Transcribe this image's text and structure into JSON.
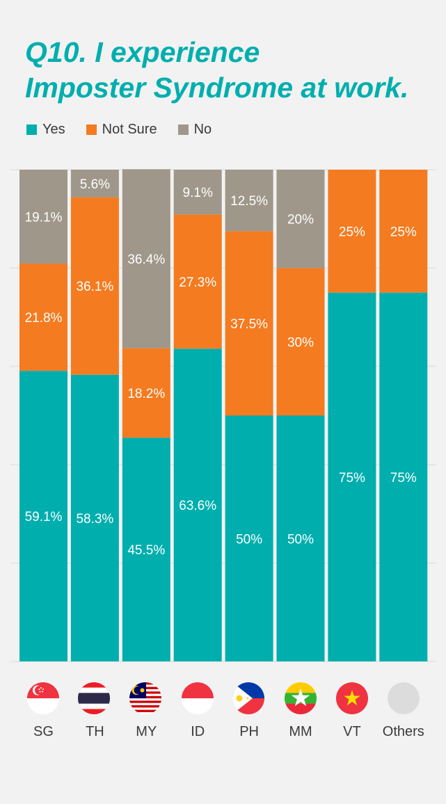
{
  "title_line1": "Q10. I experience",
  "title_line2": "Imposter Syndrome at work.",
  "colors": {
    "yes": "#00aeae",
    "not_sure": "#f47b20",
    "no": "#9f978a",
    "grid": "#d9d9d9",
    "label": "#ffffff",
    "axis_text": "#3a3a3a"
  },
  "chart_data": {
    "type": "bar",
    "stacked": true,
    "orientation": "vertical",
    "title": "Q10. I experience Imposter Syndrome at work.",
    "categories": [
      "SG",
      "TH",
      "MY",
      "ID",
      "PH",
      "MM",
      "VT",
      "Others"
    ],
    "series": [
      {
        "name": "Yes",
        "values": [
          59.1,
          58.3,
          45.5,
          63.6,
          50,
          50,
          75,
          75
        ],
        "labels": [
          "59.1%",
          "58.3%",
          "45.5%",
          "63.6%",
          "50%",
          "50%",
          "75%",
          "75%"
        ]
      },
      {
        "name": "Not Sure",
        "values": [
          21.8,
          36.1,
          18.2,
          27.3,
          37.5,
          30,
          25,
          25
        ],
        "labels": [
          "21.8%",
          "36.1%",
          "18.2%",
          "27.3%",
          "37.5%",
          "30%",
          "25%",
          "25%"
        ]
      },
      {
        "name": "No",
        "values": [
          19.1,
          5.6,
          36.4,
          9.1,
          12.5,
          20,
          0,
          0
        ],
        "labels": [
          "19.1%",
          "5.6%",
          "36.4%",
          "9.1%",
          "12.5%",
          "20%",
          "",
          ""
        ]
      }
    ],
    "ylim": [
      0,
      100
    ],
    "grid": true,
    "legend_position": "top-left"
  },
  "flags": [
    "singapore-flag-icon",
    "thailand-flag-icon",
    "malaysia-flag-icon",
    "indonesia-flag-icon",
    "philippines-flag-icon",
    "myanmar-flag-icon",
    "vietnam-flag-icon",
    "others-placeholder-icon"
  ]
}
